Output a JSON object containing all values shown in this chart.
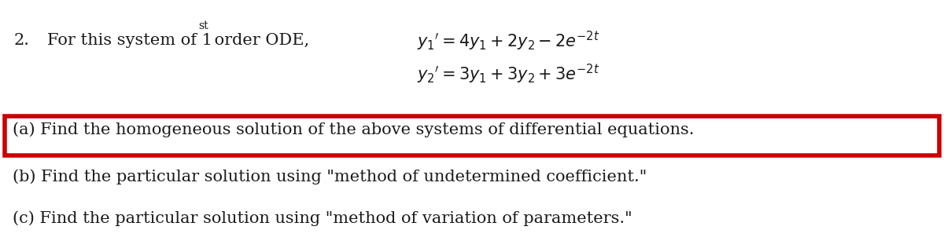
{
  "bg_color": "#ffffff",
  "text_color": "#1a1a1a",
  "red_color": "#cc0000",
  "fig_width": 12.0,
  "fig_height": 3.21,
  "dpi": 100,
  "number_text": "2.",
  "intro_text": "For this system of 1",
  "sup_text": "st",
  "intro_text2": " order ODE,",
  "eq1": "$y_1{}'= 4y_1 + 2y_2 - 2e^{-2t}$",
  "eq2": "$y_2{}'= 3y_1 + 3y_2 + 3e^{-2t}$",
  "part_a": "(a) Find the homogeneous solution of the above systems of differential equations.",
  "part_b": "(b) Find the particular solution using \"method of undetermined coefficient.\"",
  "part_c": "(c) Find the particular solution using \"method of variation of parameters.\""
}
